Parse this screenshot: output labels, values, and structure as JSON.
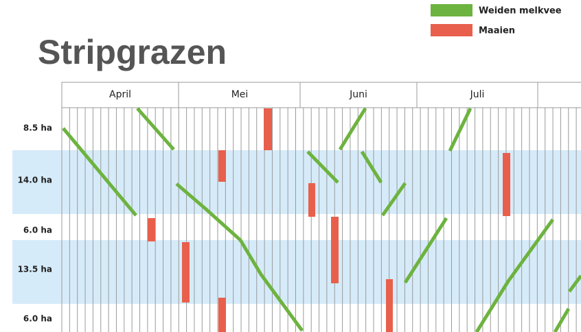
{
  "title": "Stripgrazen",
  "legend": [
    {
      "label": "Weiden melkvee",
      "color": "#6db33f"
    },
    {
      "label": "Maaien",
      "color": "#e8604c"
    }
  ],
  "months": [
    "April",
    "Mei",
    "Juni",
    "Juli"
  ],
  "rows": [
    "8.5 ha",
    "14.0 ha",
    "6.0 ha",
    "13.5 ha",
    "6.0 ha"
  ]
}
